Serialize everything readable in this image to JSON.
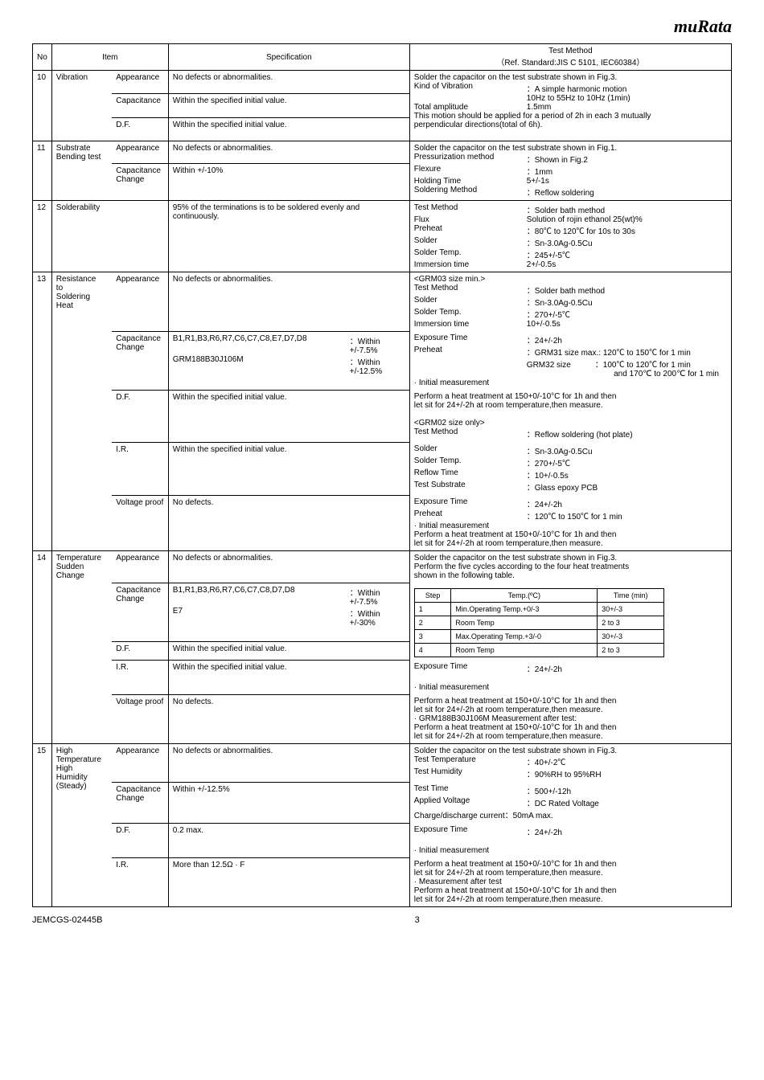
{
  "logo": "muRata",
  "headers": {
    "no": "No",
    "item": "Item",
    "spec": "Specification",
    "method": "Test Method",
    "method_sub": "（Ref. Standard:JIS C 5101, IEC60384）"
  },
  "rows": {
    "r10": {
      "no": "10",
      "item": "Vibration",
      "appearance": {
        "label": "Appearance",
        "spec": "No defects or abnormalities."
      },
      "capacitance": {
        "label": "Capacitance",
        "spec": "Within the specified initial value."
      },
      "df": {
        "label": "D.F.",
        "spec": "Within the specified initial value."
      },
      "method_line1": "Solder the capacitor on the test substrate shown in Fig.3.",
      "kv1_label": "Kind of Vibration",
      "kv1_val": "：A simple harmonic motion",
      "kv1b": "10Hz to 55Hz to 10Hz (1min)",
      "kv2_label": "Total amplitude",
      "kv2_val": "1.5mm",
      "note1": "This motion should be applied for a period of 2h in each 3 mutually",
      "note2": "perpendicular directions(total of 6h)."
    },
    "r11": {
      "no": "11",
      "item1": "Substrate",
      "item2": "Bending test",
      "appearance": {
        "label": "Appearance",
        "spec": "No defects or abnormalities."
      },
      "cap": {
        "label": "Capacitance",
        "label2": "Change",
        "spec": "Within +/-10%"
      },
      "m1": "Solder the capacitor on the test substrate shown in Fig.1.",
      "kv1_l": "Pressurization method",
      "kv1_v": "：Shown in Fig.2",
      "kv2_l": "Flexure",
      "kv2_v": "：1mm",
      "kv3_l": "Holding Time",
      "kv3_v": "5+/-1s",
      "kv4_l": "Soldering Method",
      "kv4_v": "：Reflow soldering"
    },
    "r12": {
      "no": "12",
      "item": "Solderability",
      "spec1": "95% of the terminations is to be soldered evenly and",
      "spec2": "continuously.",
      "kv1_l": "Test Method",
      "kv1_v": "：Solder bath method",
      "kv2_l": "Flux",
      "kv2_v": "Solution of rojin ethanol 25(wt)%",
      "kv3_l": "Preheat",
      "kv3_v": "：80℃ to 120℃ for 10s to 30s",
      "kv4_l": "Solder",
      "kv4_v": "：Sn-3.0Ag-0.5Cu",
      "kv5_l": "Solder Temp.",
      "kv5_v": "：245+/-5℃",
      "kv6_l": "Immersion time",
      "kv6_v": "2+/-0.5s"
    },
    "r13": {
      "no": "13",
      "item1": "Resistance",
      "item2": "to",
      "item3": "Soldering",
      "item4": "Heat",
      "appearance": {
        "label": "Appearance",
        "spec": "No defects or abnormalities."
      },
      "m_head": "<GRM03 size min.>",
      "kv1_l": "Test Method",
      "kv1_v": "：Solder bath method",
      "kv2_l": "Solder",
      "kv2_v": "：Sn-3.0Ag-0.5Cu",
      "kv3_l": "Solder Temp.",
      "kv3_v": "：270+/-5℃",
      "kv4_l": "Immersion time",
      "kv4_v": "10+/-0.5s",
      "cap_label": "Capacitance",
      "cap_label2": "Change",
      "cap_spec1_code": "B1,R1,B3,R6,R7,C6,C7,C8,E7,D7,D8",
      "cap_spec1_tol": "：Within +/-7.5%",
      "cap_spec2_code": "GRM188B30J106M",
      "cap_spec2_tol": "：Within +/-12.5%",
      "kv5_l": "Exposure Time",
      "kv5_v": "：24+/-2h",
      "kv6_l": "Preheat",
      "kv6_v": "：GRM31 size max.: 120℃ to 150℃ for 1 min",
      "kv6b": "GRM32 size　　　：100℃ to 120℃ for 1 min",
      "kv6c": "and 170℃ to 200℃ for 1 min",
      "kv7": "· Initial measurement",
      "df_label": "D.F.",
      "df_spec": "Within the specified initial value.",
      "df_m1": "Perform a heat treatment at 150+0/-10°C for 1h and then",
      "df_m2": "let sit for 24+/-2h at room temperature,then measure.",
      "df_m3": "<GRM02 size only>",
      "df_m4_l": "Test Method",
      "df_m4_v": "：Reflow soldering (hot plate)",
      "ir_label": "I.R.",
      "ir_spec": "Within the specified initial value.",
      "ir_kv1_l": "Solder",
      "ir_kv1_v": "：Sn-3.0Ag-0.5Cu",
      "ir_kv2_l": "Solder Temp.",
      "ir_kv2_v": "：270+/-5℃",
      "ir_kv3_l": "Reflow Time",
      "ir_kv3_v": "：10+/-0.5s",
      "ir_kv4_l": "Test Substrate",
      "ir_kv4_v": "：Glass epoxy PCB",
      "vp_label": "Voltage proof",
      "vp_spec": "No defects.",
      "vp_kv1_l": "Exposure Time",
      "vp_kv1_v": "：24+/-2h",
      "vp_kv2_l": "Preheat",
      "vp_kv2_v": "：120℃ to 150℃ for 1 min",
      "vp_kv3": "· Initial measurement",
      "vp_kv4": "Perform a heat treatment at 150+0/-10°C for 1h and then",
      "vp_kv5": "let sit for 24+/-2h at room temperature,then measure."
    },
    "r14": {
      "no": "14",
      "item1": "Temperature",
      "item2": "Sudden Change",
      "appearance": {
        "label": "Appearance",
        "spec": "No defects or abnormalities."
      },
      "m1": "Solder the capacitor on the test substrate shown in Fig.3.",
      "m2": "Perform the five cycles according to the four heat treatments",
      "m3": "shown in the following table.",
      "cap_label": "Capacitance",
      "cap_label2": "Change",
      "cap_spec1_code": "B1,R1,B3,R6,R7,C6,C7,C8,D7,D8",
      "cap_spec1_tol": "：Within +/-7.5%",
      "cap_spec2_code": "E7",
      "cap_spec2_tol": "：Within +/-30%",
      "inner_table": {
        "h1": "Step",
        "h2": "Temp.(ºC)",
        "h3": "Time\n(min)",
        "r1": [
          "1",
          "Min.Operating Temp.+0/-3",
          "30+/-3"
        ],
        "r2": [
          "2",
          "Room Temp",
          "2 to 3"
        ],
        "r3": [
          "3",
          "Max.Operating Temp.+3/-0",
          "30+/-3"
        ],
        "r4": [
          "4",
          "Room Temp",
          "2 to 3"
        ]
      },
      "df_label": "D.F.",
      "df_spec": "Within the specified initial value.",
      "ir_label": "I.R.",
      "ir_spec": "Within the specified initial value.",
      "ir_kv1_l": "Exposure Time",
      "ir_kv1_v": "：24+/-2h",
      "ir_kv2": "· Initial measurement",
      "vp_label": "Voltage proof",
      "vp_spec": "No defects.",
      "vp_m1": "Perform a heat treatment at 150+0/-10°C for 1h and then",
      "vp_m2": "let sit for 24+/-2h at room temperature,then measure.",
      "vp_m3": "· GRM188B30J106M Measurement after test:",
      "vp_m4": "Perform a heat treatment at 150+0/-10°C for 1h and then",
      "vp_m5": "let sit for 24+/-2h at room temperature,then measure."
    },
    "r15": {
      "no": "15",
      "item1": "High",
      "item2": "Temperature",
      "item3": "High",
      "item4": "Humidity",
      "item5": "(Steady)",
      "appearance": {
        "label": "Appearance",
        "spec": "No defects or abnormalities."
      },
      "m1": "Solder the capacitor on the test substrate shown in Fig.3.",
      "kv1_l": "Test Temperature",
      "kv1_v": "：40+/-2℃",
      "kv2_l": "Test Humidity",
      "kv2_v": "：90%RH to 95%RH",
      "cap_label": "Capacitance",
      "cap_label2": "Change",
      "cap_spec": "Within +/-12.5%",
      "kv3_l": "Test Time",
      "kv3_v": "：500+/-12h",
      "kv4_l": "Applied Voltage",
      "kv4_v": "：DC Rated Voltage",
      "kv5": "Charge/discharge current：50mA max.",
      "df_label": "D.F.",
      "df_spec": "0.2 max.",
      "kv6_l": "Exposure Time",
      "kv6_v": "：24+/-2h",
      "kv7": "· Initial measurement",
      "ir_label": "I.R.",
      "ir_spec": "More than 12.5Ω · F",
      "ir_m1": "Perform a heat treatment at 150+0/-10°C for 1h and then",
      "ir_m2": "let sit for 24+/-2h at room temperature,then measure.",
      "ir_m3": "· Measurement after test",
      "ir_m4": "Perform a heat treatment at 150+0/-10°C for 1h and then",
      "ir_m5": "let sit for 24+/-2h at room temperature,then measure."
    }
  },
  "footer": {
    "doc": "JEMCGS-02445B",
    "page": "3"
  }
}
